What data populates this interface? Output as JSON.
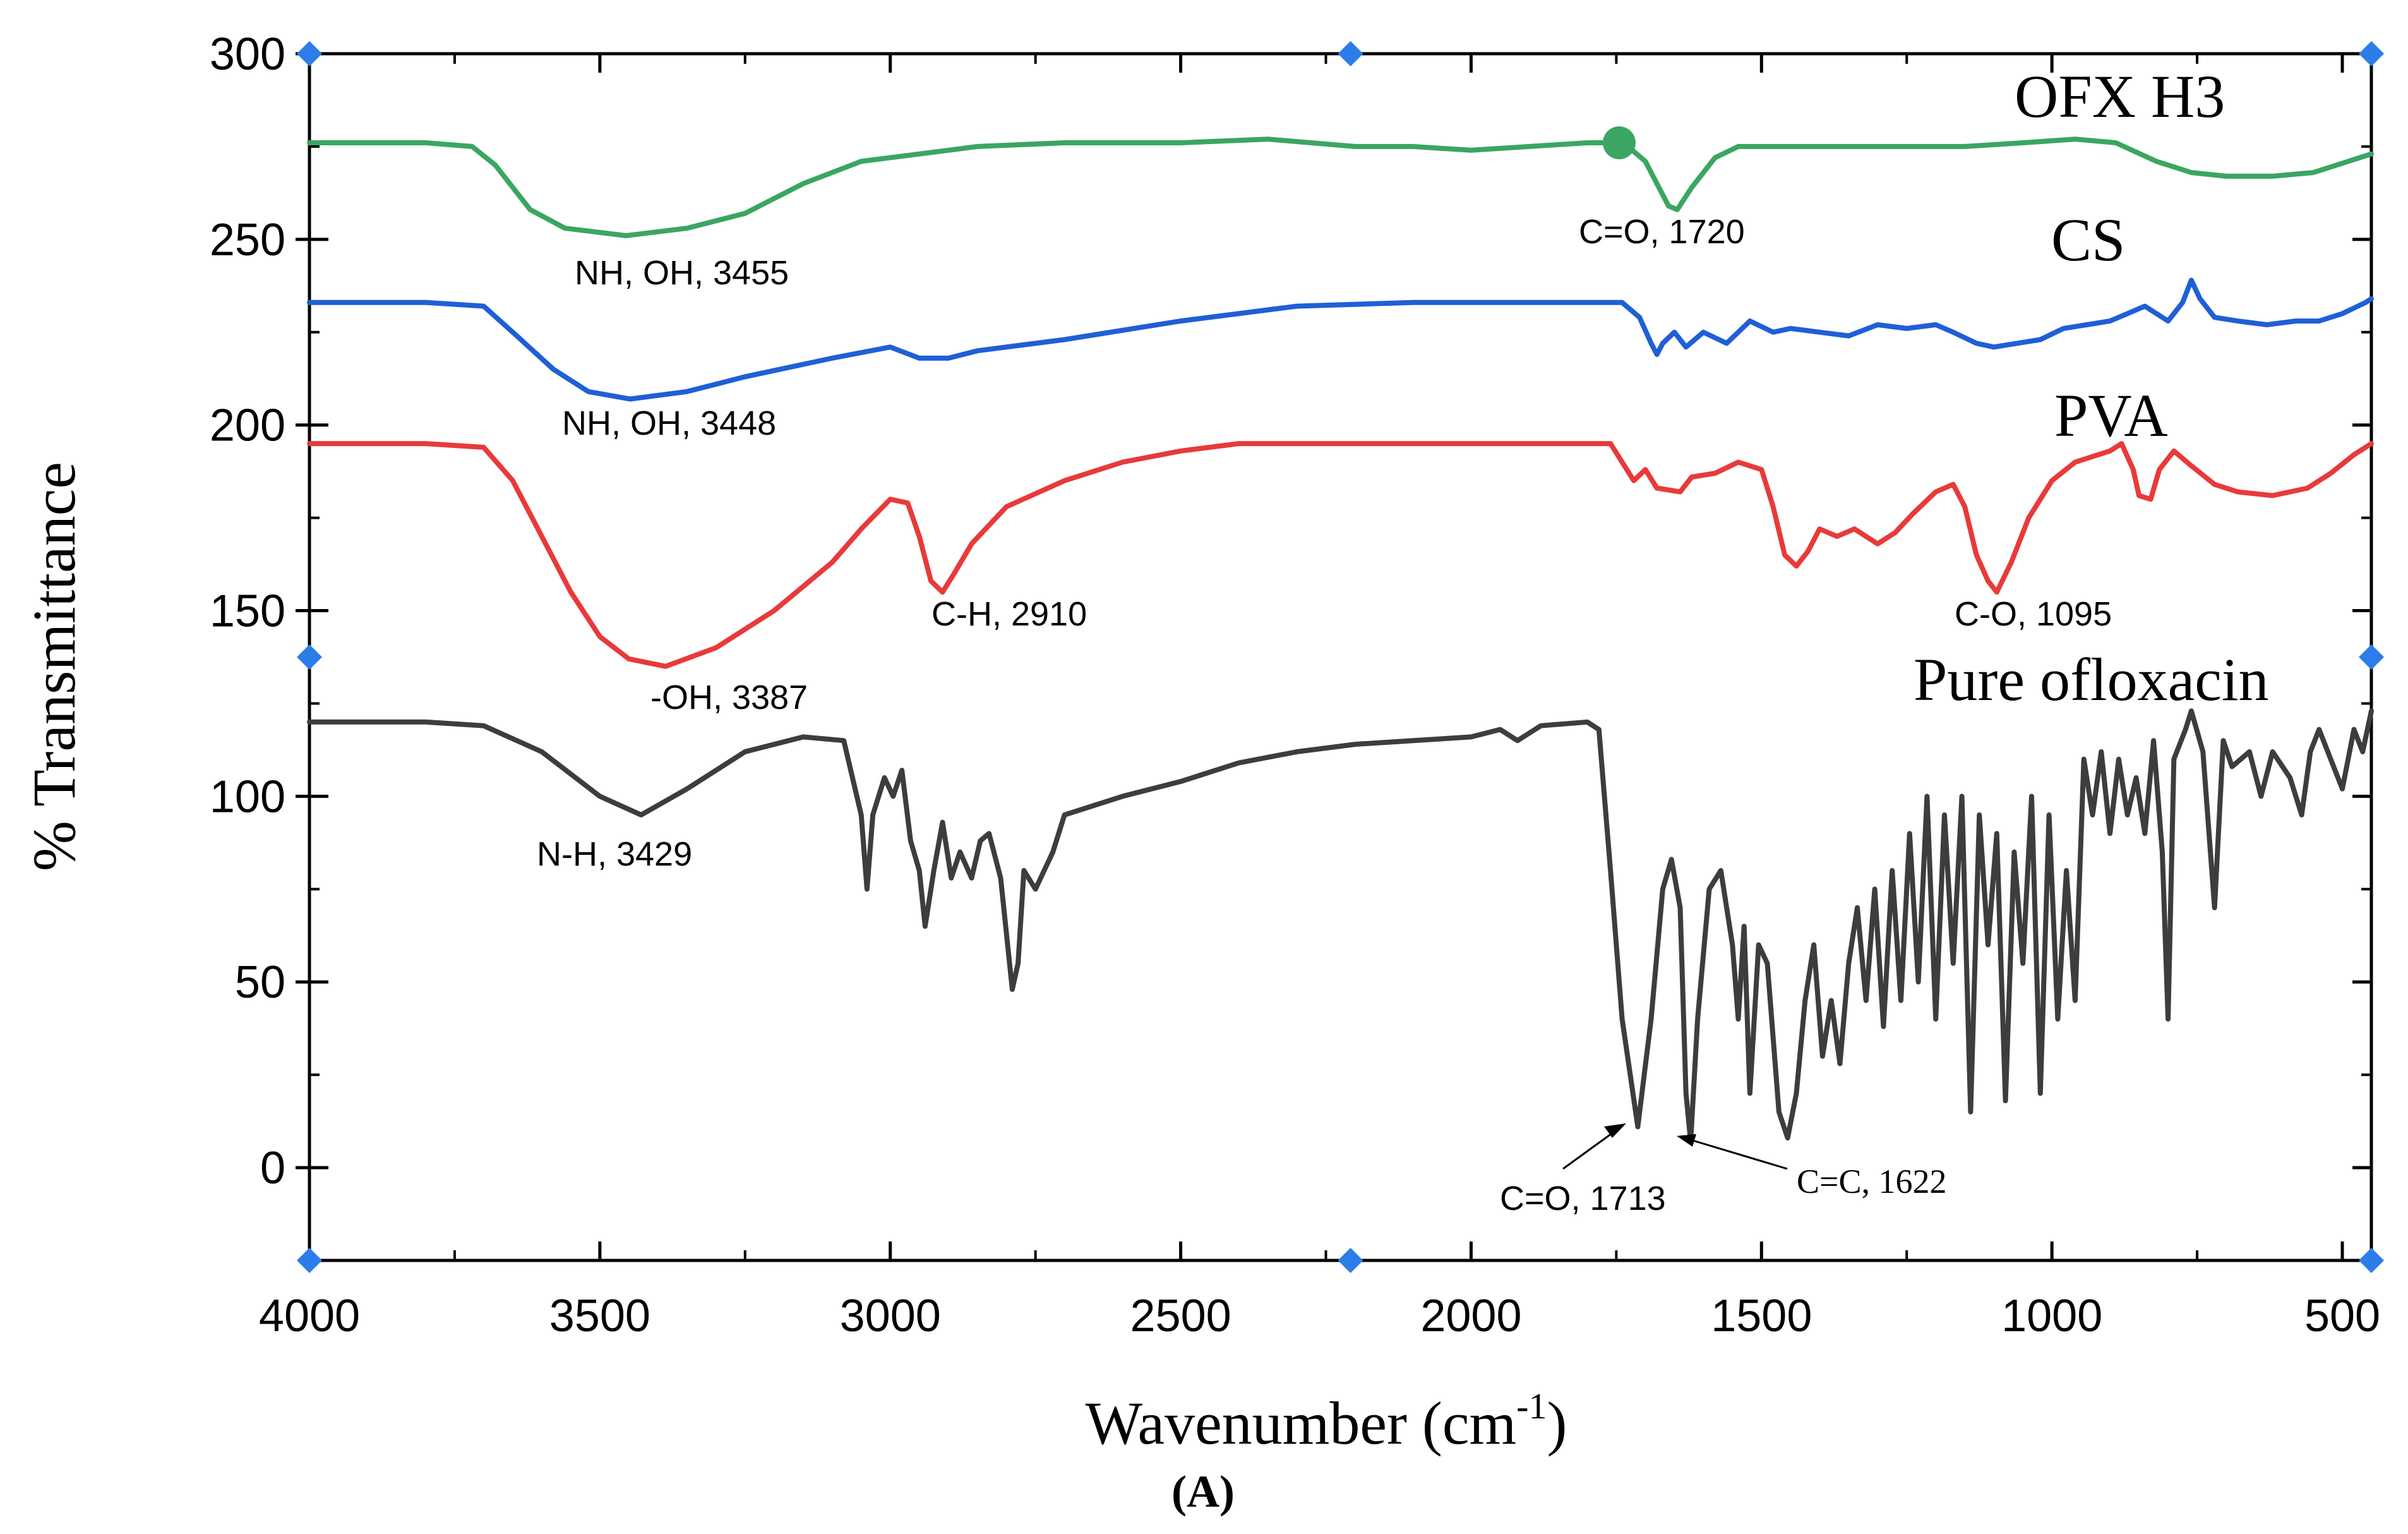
{
  "chart_data": {
    "type": "line",
    "title": "",
    "xlabel": "Wavenumber (cm",
    "xlabel_superscript": "-1",
    "xlabel_close": ")",
    "ylabel": "% Transmittance",
    "panel_label": "(A)",
    "xlim": [
      4000,
      450
    ],
    "ylim": [
      -25,
      300
    ],
    "x_ticks": [
      4000,
      3500,
      3000,
      2500,
      2000,
      1500,
      1000,
      500
    ],
    "x_tick_labels": [
      "4000",
      "3500",
      "3000",
      "2500",
      "2000",
      "1500",
      "1000",
      "500"
    ],
    "y_ticks": [
      0,
      50,
      100,
      150,
      200,
      250,
      300
    ],
    "y_tick_labels": [
      "0",
      "50",
      "100",
      "150",
      "200",
      "250",
      "300"
    ],
    "grid": false,
    "series": [
      {
        "name": "OFX H3",
        "color": "#3aa661",
        "points": [
          [
            4000,
            276
          ],
          [
            3800,
            276
          ],
          [
            3720,
            275
          ],
          [
            3680,
            270
          ],
          [
            3620,
            258
          ],
          [
            3560,
            253
          ],
          [
            3455,
            251
          ],
          [
            3350,
            253
          ],
          [
            3250,
            257
          ],
          [
            3150,
            265
          ],
          [
            3050,
            271
          ],
          [
            2950,
            273
          ],
          [
            2850,
            275
          ],
          [
            2700,
            276
          ],
          [
            2500,
            276
          ],
          [
            2350,
            277
          ],
          [
            2200,
            275
          ],
          [
            2100,
            275
          ],
          [
            2000,
            274
          ],
          [
            1900,
            275
          ],
          [
            1800,
            276
          ],
          [
            1760,
            276
          ],
          [
            1730,
            275
          ],
          [
            1700,
            271
          ],
          [
            1680,
            265
          ],
          [
            1660,
            259
          ],
          [
            1645,
            258
          ],
          [
            1620,
            264
          ],
          [
            1580,
            272
          ],
          [
            1540,
            275
          ],
          [
            1450,
            275
          ],
          [
            1300,
            275
          ],
          [
            1150,
            275
          ],
          [
            1050,
            276
          ],
          [
            960,
            277
          ],
          [
            890,
            276
          ],
          [
            820,
            271
          ],
          [
            760,
            268
          ],
          [
            700,
            267
          ],
          [
            620,
            267
          ],
          [
            550,
            268
          ],
          [
            470,
            272
          ],
          [
            450,
            273
          ]
        ]
      },
      {
        "name": "CS",
        "color": "#1f5fd6",
        "points": [
          [
            4000,
            233
          ],
          [
            3800,
            233
          ],
          [
            3700,
            232
          ],
          [
            3650,
            225
          ],
          [
            3580,
            215
          ],
          [
            3520,
            209
          ],
          [
            3448,
            207
          ],
          [
            3350,
            209
          ],
          [
            3250,
            213
          ],
          [
            3100,
            218
          ],
          [
            3000,
            221
          ],
          [
            2950,
            218
          ],
          [
            2900,
            218
          ],
          [
            2850,
            220
          ],
          [
            2700,
            223
          ],
          [
            2500,
            228
          ],
          [
            2300,
            232
          ],
          [
            2100,
            233
          ],
          [
            1900,
            233
          ],
          [
            1800,
            233
          ],
          [
            1740,
            233
          ],
          [
            1710,
            229
          ],
          [
            1690,
            222
          ],
          [
            1680,
            219
          ],
          [
            1670,
            222
          ],
          [
            1650,
            225
          ],
          [
            1630,
            221
          ],
          [
            1600,
            225
          ],
          [
            1560,
            222
          ],
          [
            1520,
            228
          ],
          [
            1480,
            225
          ],
          [
            1450,
            226
          ],
          [
            1400,
            225
          ],
          [
            1350,
            224
          ],
          [
            1300,
            227
          ],
          [
            1250,
            226
          ],
          [
            1200,
            227
          ],
          [
            1170,
            225
          ],
          [
            1130,
            222
          ],
          [
            1100,
            221
          ],
          [
            1060,
            222
          ],
          [
            1020,
            223
          ],
          [
            980,
            226
          ],
          [
            940,
            227
          ],
          [
            900,
            228
          ],
          [
            870,
            230
          ],
          [
            840,
            232
          ],
          [
            800,
            228
          ],
          [
            775,
            233
          ],
          [
            760,
            239
          ],
          [
            745,
            234
          ],
          [
            720,
            229
          ],
          [
            680,
            228
          ],
          [
            630,
            227
          ],
          [
            580,
            228
          ],
          [
            540,
            228
          ],
          [
            500,
            230
          ],
          [
            460,
            233
          ],
          [
            450,
            234
          ]
        ]
      },
      {
        "name": "PVA",
        "color": "#e83a3a",
        "points": [
          [
            4000,
            195
          ],
          [
            3800,
            195
          ],
          [
            3700,
            194
          ],
          [
            3650,
            185
          ],
          [
            3600,
            170
          ],
          [
            3550,
            155
          ],
          [
            3500,
            143
          ],
          [
            3450,
            137
          ],
          [
            3387,
            135
          ],
          [
            3300,
            140
          ],
          [
            3200,
            150
          ],
          [
            3100,
            163
          ],
          [
            3050,
            172
          ],
          [
            3000,
            180
          ],
          [
            2970,
            179
          ],
          [
            2950,
            170
          ],
          [
            2930,
            158
          ],
          [
            2910,
            155
          ],
          [
            2890,
            160
          ],
          [
            2860,
            168
          ],
          [
            2800,
            178
          ],
          [
            2700,
            185
          ],
          [
            2600,
            190
          ],
          [
            2500,
            193
          ],
          [
            2400,
            195
          ],
          [
            2200,
            195
          ],
          [
            2000,
            195
          ],
          [
            1800,
            195
          ],
          [
            1760,
            195
          ],
          [
            1740,
            190
          ],
          [
            1720,
            185
          ],
          [
            1700,
            188
          ],
          [
            1680,
            183
          ],
          [
            1640,
            182
          ],
          [
            1620,
            186
          ],
          [
            1580,
            187
          ],
          [
            1540,
            190
          ],
          [
            1500,
            188
          ],
          [
            1480,
            178
          ],
          [
            1460,
            165
          ],
          [
            1440,
            162
          ],
          [
            1420,
            166
          ],
          [
            1400,
            172
          ],
          [
            1370,
            170
          ],
          [
            1340,
            172
          ],
          [
            1300,
            168
          ],
          [
            1270,
            171
          ],
          [
            1240,
            176
          ],
          [
            1200,
            182
          ],
          [
            1170,
            184
          ],
          [
            1150,
            178
          ],
          [
            1130,
            165
          ],
          [
            1110,
            158
          ],
          [
            1095,
            155
          ],
          [
            1070,
            163
          ],
          [
            1040,
            175
          ],
          [
            1000,
            185
          ],
          [
            960,
            190
          ],
          [
            900,
            193
          ],
          [
            880,
            195
          ],
          [
            860,
            188
          ],
          [
            850,
            181
          ],
          [
            830,
            180
          ],
          [
            815,
            188
          ],
          [
            790,
            193
          ],
          [
            760,
            189
          ],
          [
            720,
            184
          ],
          [
            680,
            182
          ],
          [
            620,
            181
          ],
          [
            560,
            183
          ],
          [
            520,
            187
          ],
          [
            480,
            192
          ],
          [
            450,
            195
          ]
        ]
      },
      {
        "name": "Pure ofloxacin",
        "color": "#3d3d3d",
        "points": [
          [
            4000,
            120
          ],
          [
            3800,
            120
          ],
          [
            3700,
            119
          ],
          [
            3600,
            112
          ],
          [
            3500,
            100
          ],
          [
            3429,
            95
          ],
          [
            3350,
            102
          ],
          [
            3250,
            112
          ],
          [
            3150,
            116
          ],
          [
            3080,
            115
          ],
          [
            3050,
            95
          ],
          [
            3040,
            75
          ],
          [
            3030,
            95
          ],
          [
            3010,
            105
          ],
          [
            2995,
            100
          ],
          [
            2980,
            107
          ],
          [
            2965,
            88
          ],
          [
            2950,
            80
          ],
          [
            2940,
            65
          ],
          [
            2925,
            80
          ],
          [
            2910,
            93
          ],
          [
            2895,
            78
          ],
          [
            2880,
            85
          ],
          [
            2860,
            78
          ],
          [
            2845,
            88
          ],
          [
            2830,
            90
          ],
          [
            2810,
            78
          ],
          [
            2790,
            48
          ],
          [
            2780,
            55
          ],
          [
            2770,
            80
          ],
          [
            2750,
            75
          ],
          [
            2720,
            85
          ],
          [
            2700,
            95
          ],
          [
            2600,
            100
          ],
          [
            2500,
            104
          ],
          [
            2400,
            109
          ],
          [
            2300,
            112
          ],
          [
            2200,
            114
          ],
          [
            2100,
            115
          ],
          [
            2000,
            116
          ],
          [
            1950,
            118
          ],
          [
            1920,
            115
          ],
          [
            1880,
            119
          ],
          [
            1800,
            120
          ],
          [
            1780,
            118
          ],
          [
            1760,
            80
          ],
          [
            1740,
            40
          ],
          [
            1713,
            11
          ],
          [
            1690,
            40
          ],
          [
            1670,
            75
          ],
          [
            1655,
            83
          ],
          [
            1640,
            70
          ],
          [
            1630,
            20
          ],
          [
            1622,
            7
          ],
          [
            1610,
            40
          ],
          [
            1590,
            75
          ],
          [
            1570,
            80
          ],
          [
            1550,
            60
          ],
          [
            1540,
            40
          ],
          [
            1530,
            65
          ],
          [
            1520,
            20
          ],
          [
            1505,
            60
          ],
          [
            1490,
            55
          ],
          [
            1470,
            15
          ],
          [
            1455,
            8
          ],
          [
            1440,
            20
          ],
          [
            1425,
            45
          ],
          [
            1410,
            60
          ],
          [
            1395,
            30
          ],
          [
            1380,
            45
          ],
          [
            1365,
            28
          ],
          [
            1350,
            55
          ],
          [
            1335,
            70
          ],
          [
            1320,
            45
          ],
          [
            1305,
            75
          ],
          [
            1290,
            38
          ],
          [
            1275,
            80
          ],
          [
            1260,
            45
          ],
          [
            1245,
            90
          ],
          [
            1230,
            50
          ],
          [
            1215,
            100
          ],
          [
            1200,
            40
          ],
          [
            1185,
            95
          ],
          [
            1170,
            55
          ],
          [
            1155,
            100
          ],
          [
            1140,
            15
          ],
          [
            1125,
            95
          ],
          [
            1110,
            60
          ],
          [
            1095,
            90
          ],
          [
            1080,
            18
          ],
          [
            1065,
            85
          ],
          [
            1050,
            55
          ],
          [
            1035,
            100
          ],
          [
            1020,
            20
          ],
          [
            1005,
            95
          ],
          [
            990,
            40
          ],
          [
            975,
            80
          ],
          [
            960,
            45
          ],
          [
            945,
            110
          ],
          [
            930,
            95
          ],
          [
            915,
            112
          ],
          [
            900,
            90
          ],
          [
            885,
            110
          ],
          [
            870,
            95
          ],
          [
            855,
            105
          ],
          [
            840,
            90
          ],
          [
            825,
            115
          ],
          [
            810,
            85
          ],
          [
            800,
            40
          ],
          [
            790,
            110
          ],
          [
            770,
            118
          ],
          [
            760,
            123
          ],
          [
            740,
            112
          ],
          [
            720,
            70
          ],
          [
            705,
            115
          ],
          [
            690,
            108
          ],
          [
            660,
            112
          ],
          [
            640,
            100
          ],
          [
            620,
            112
          ],
          [
            590,
            105
          ],
          [
            570,
            95
          ],
          [
            555,
            112
          ],
          [
            540,
            118
          ],
          [
            520,
            110
          ],
          [
            500,
            102
          ],
          [
            480,
            118
          ],
          [
            465,
            112
          ],
          [
            450,
            123
          ]
        ]
      }
    ],
    "annotations": [
      {
        "text": "NH, OH, 3455",
        "series": "OFX H3"
      },
      {
        "text": "C=O, 1720",
        "series": "OFX H3"
      },
      {
        "text": "NH, OH, 3448",
        "series": "CS"
      },
      {
        "text": "C-H, 2910",
        "series": "PVA"
      },
      {
        "text": "-OH, 3387",
        "series": "PVA"
      },
      {
        "text": "C-O, 1095",
        "series": "PVA"
      },
      {
        "text": "N-H, 3429",
        "series": "Pure ofloxacin"
      },
      {
        "text": "C=O, 1713",
        "series": "Pure ofloxacin"
      },
      {
        "text": "C=C, 1622",
        "series": "Pure ofloxacin"
      }
    ],
    "handle_color": "#2b7de9",
    "marker_color": "#3aa661"
  }
}
